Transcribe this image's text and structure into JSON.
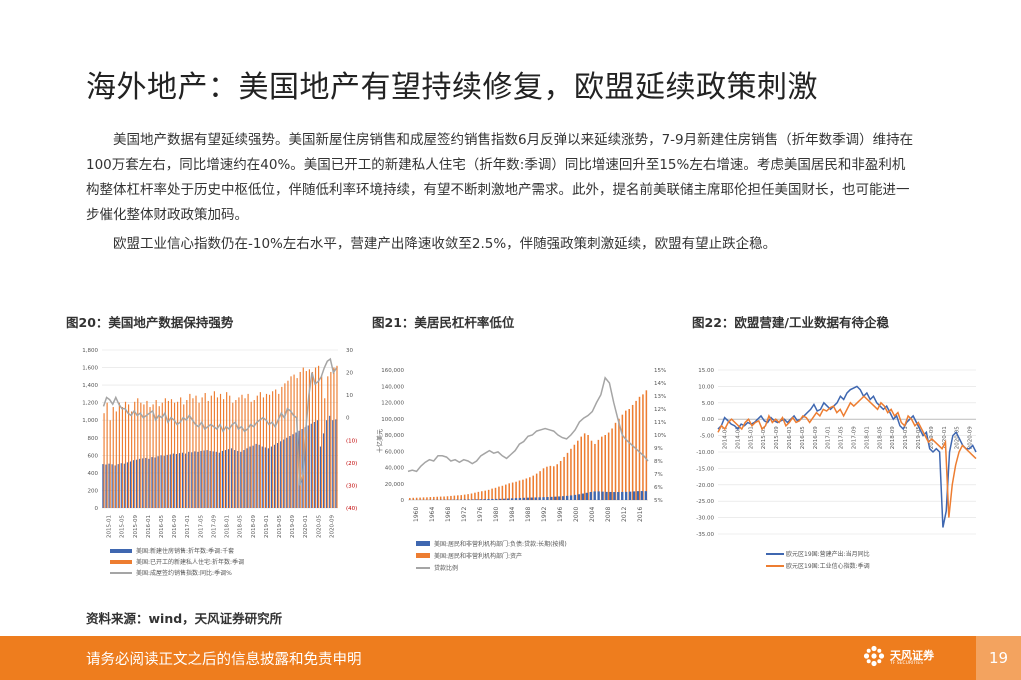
{
  "page": {
    "title": "海外地产：美国地产有望持续修复，欧盟延续政策刺激",
    "paragraphs": [
      "美国地产数据有望延续强势。美国新屋住房销售和成屋签约销售指数6月反弹以来延续涨势，7-9月新建住房销售（折年数季调）维持在100万套左右，同比增速约在40%。美国已开工的新建私人住宅（折年数:季调）同比增速回升至15%左右增速。考虑美国居民和非盈利机构整体杠杆率处于历史中枢低位，伴随低利率环境持续，有望不断刺激地产需求。此外，提名前美联储主席耶伦担任美国财长，也可能进一步催化整体财政政策加码。",
      "欧盟工业信心指数仍在-10%左右水平，营建产出降速收敛至2.5%，伴随强政策刺激延续，欧盟有望止跌企稳。"
    ],
    "source": "资料来源：wind，天风证券研究所",
    "footer_text": "请务必阅读正文之后的信息披露和免责申明",
    "logo_text": "天风证券",
    "logo_sub": "TF SECURITIES",
    "page_number": "19",
    "colors": {
      "accent_orange": "#ee7d1e",
      "series_blue": "#3f67b0",
      "series_orange": "#ed7d31",
      "series_gray": "#a5a5a5"
    }
  },
  "chart_data": [
    {
      "type": "bar",
      "title": "图20：美国地产数据保持强势",
      "x_ticks": [
        "2015-01",
        "2015-05",
        "2015-09",
        "2016-01",
        "2016-05",
        "2016-09",
        "2017-01",
        "2017-05",
        "2017-09",
        "2018-01",
        "2018-05",
        "2018-09",
        "2019-01",
        "2019-05",
        "2019-09",
        "2020-01",
        "2020-05",
        "2020-09"
      ],
      "left_axis": {
        "ylim": [
          0,
          1800
        ],
        "ticks": [
          "1,800",
          "1,600",
          "1,400",
          "1,200",
          "1,000",
          "800",
          "600",
          "400",
          "200",
          "0"
        ]
      },
      "right_axis": {
        "ylim": [
          -40,
          30
        ],
        "ticks": [
          "30",
          "20",
          "10",
          "0",
          "(10)",
          "(20)",
          "(30)",
          "(40)"
        ]
      },
      "series": [
        {
          "name": "美国:新建住房销售:折年数:季调:千套",
          "type": "bar",
          "axis": "left",
          "values": [
            500,
            495,
            505,
            498,
            485,
            500,
            510,
            505,
            520,
            530,
            545,
            550,
            560,
            565,
            570,
            560,
            580,
            575,
            590,
            600,
            595,
            605,
            610,
            620,
            615,
            625,
            630,
            620,
            640,
            635,
            645,
            640,
            650,
            655,
            660,
            650,
            645,
            640,
            630,
            650,
            660,
            670,
            680,
            660,
            650,
            640,
            660,
            680,
            700,
            710,
            730,
            720,
            700,
            690,
            680,
            700,
            720,
            740,
            760,
            780,
            800,
            820,
            840,
            860,
            880,
            900,
            920,
            940,
            960,
            980,
            1000,
            700,
            850,
            1000,
            1050,
            1000,
            1010
          ]
        },
        {
          "name": "美国:已开工的新建私人住宅:折年数:季调",
          "type": "bar",
          "axis": "left",
          "values": [
            1080,
            1200,
            1000,
            1150,
            1100,
            1200,
            1150,
            1210,
            1180,
            1100,
            1210,
            1250,
            1200,
            1180,
            1220,
            1150,
            1180,
            1230,
            1160,
            1200,
            1250,
            1220,
            1240,
            1200,
            1210,
            1260,
            1180,
            1230,
            1300,
            1250,
            1280,
            1200,
            1260,
            1310,
            1220,
            1280,
            1330,
            1260,
            1300,
            1240,
            1320,
            1280,
            1200,
            1230,
            1260,
            1290,
            1250,
            1300,
            1210,
            1230,
            1280,
            1320,
            1260,
            1300,
            1290,
            1330,
            1350,
            1300,
            1380,
            1420,
            1450,
            1500,
            1520,
            1480,
            1550,
            1600,
            1560,
            1580,
            1550,
            1600,
            1620,
            1500,
            1250,
            1500,
            1550,
            1600,
            1620
          ]
        },
        {
          "name": "美国:成屋签约销售指数:同比:季调%",
          "type": "line",
          "axis": "right",
          "values": [
            5,
            9,
            8,
            6,
            9,
            6,
            4,
            4,
            2,
            1,
            3,
            1,
            2,
            0,
            1,
            2,
            3,
            -1,
            1,
            0,
            2,
            -2,
            0,
            -1,
            -3,
            -2,
            0,
            -1,
            1,
            -1,
            -3,
            -4,
            -2,
            -5,
            -4,
            -3,
            -4,
            -5,
            -3,
            -6,
            -4,
            -5,
            -3,
            -2,
            -5,
            -4,
            -6,
            -5,
            -3,
            -4,
            -2,
            -1,
            0,
            -1,
            -3,
            -2,
            -4,
            -1,
            2,
            0,
            4,
            3,
            1,
            0,
            -30,
            -25,
            -5,
            10,
            20,
            15,
            16,
            18,
            22,
            25,
            26,
            20,
            22
          ]
        }
      ]
    },
    {
      "type": "bar",
      "title": "图21：美居民杠杆率低位",
      "x_ticks": [
        "1960",
        "1964",
        "1968",
        "1972",
        "1976",
        "1980",
        "1984",
        "1988",
        "1992",
        "1996",
        "2000",
        "2004",
        "2008",
        "2012",
        "2016"
      ],
      "ylabel": "十亿美元",
      "left_axis": {
        "ylim": [
          0,
          160000
        ],
        "ticks": [
          "160,000",
          "140,000",
          "120,000",
          "100,000",
          "80,000",
          "60,000",
          "40,000",
          "20,000",
          "0"
        ]
      },
      "right_axis": {
        "ylim": [
          5,
          15
        ],
        "ticks": [
          "15%",
          "14%",
          "13%",
          "12%",
          "11%",
          "10%",
          "9%",
          "8%",
          "7%",
          "6%",
          "5%"
        ]
      },
      "series": [
        {
          "name": "美国:居民和非营利机构部门:负债:贷款:长期(按揭)",
          "type": "bar",
          "axis": "left",
          "values": [
            140,
            160,
            180,
            200,
            225,
            250,
            280,
            310,
            340,
            370,
            400,
            440,
            480,
            530,
            590,
            650,
            730,
            820,
            930,
            1050,
            1180,
            1270,
            1340,
            1450,
            1620,
            1830,
            2060,
            2300,
            2520,
            2720,
            2900,
            3030,
            3150,
            3300,
            3470,
            3660,
            3860,
            4100,
            4390,
            4740,
            5130,
            5650,
            6320,
            7050,
            7930,
            8870,
            9820,
            10500,
            10600,
            10300,
            10000,
            9900,
            9800,
            9850,
            9900,
            10000,
            10300,
            10600,
            10900,
            11000,
            10900
          ]
        },
        {
          "name": "美国:居民和非营利机构部门:资产",
          "type": "bar",
          "axis": "left",
          "values": [
            2500,
            2700,
            2800,
            3000,
            3200,
            3300,
            3600,
            3800,
            4000,
            4200,
            4300,
            4600,
            5000,
            5400,
            5700,
            6000,
            6600,
            7200,
            8000,
            9000,
            10000,
            10800,
            11500,
            12500,
            14000,
            15000,
            16500,
            17500,
            19000,
            20500,
            21500,
            22500,
            24000,
            25000,
            26500,
            28000,
            30000,
            32500,
            35500,
            39000,
            41000,
            42000,
            41500,
            44000,
            48000,
            53000,
            58000,
            63000,
            68000,
            73000,
            78000,
            82000,
            80000,
            73000,
            69000,
            74000,
            78000,
            80000,
            83000,
            88000,
            95000,
            100000,
            105000,
            110000,
            112000,
            117000,
            122000,
            127000,
            130000,
            135000
          ]
        },
        {
          "name": "贷款比例",
          "type": "line",
          "axis": "right",
          "values": [
            7.2,
            7.3,
            7.2,
            7.6,
            7.9,
            8.1,
            8.0,
            8.4,
            8.4,
            8.3,
            8.0,
            8.1,
            7.9,
            8.1,
            8.0,
            7.8,
            8.0,
            8.4,
            8.6,
            8.8,
            8.6,
            8.7,
            8.4,
            8.2,
            8.5,
            8.8,
            9.3,
            9.5,
            9.9,
            10.0,
            10.3,
            10.4,
            10.5,
            10.4,
            10.3,
            10.0,
            9.8,
            9.7,
            10.0,
            10.4,
            11.0,
            11.3,
            11.5,
            11.8,
            12.5,
            13.1,
            14.4,
            14.0,
            12.5,
            11.2,
            10.0,
            9.6,
            9.3,
            9.0,
            8.7,
            8.4,
            8.0
          ]
        }
      ]
    },
    {
      "type": "line",
      "title": "图22：欧盟营建/工业数据有待企稳",
      "x_ticks": [
        "2014-01",
        "2014-05",
        "2015-01",
        "2015-05",
        "2015-09",
        "2016-01",
        "2016-05",
        "2016-09",
        "2017-01",
        "2017-05",
        "2017-09",
        "2018-01",
        "2018-05",
        "2018-09",
        "2019-01",
        "2019-05",
        "2019-09",
        "2020-01",
        "2020-05",
        "2020-09"
      ],
      "ylim": [
        -35,
        15
      ],
      "y_ticks": [
        "15.00",
        "10.00",
        "5.00",
        "0.00",
        "-5.00",
        "-10.00",
        "-15.00",
        "-20.00",
        "-25.00",
        "-30.00",
        "-35.00"
      ],
      "series": [
        {
          "name": "欧元区19国:营建产出:当月同比",
          "values": [
            -3,
            -2,
            0.5,
            -0.5,
            -1.5,
            -2,
            -3,
            -1.5,
            -2,
            -1,
            -1.5,
            -1,
            0,
            1,
            -0.5,
            -1,
            0.5,
            -0.5,
            -1,
            -0.5,
            0,
            -1,
            0,
            1,
            -0.5,
            0,
            1,
            2,
            3,
            4.5,
            2.5,
            3,
            5,
            4,
            3,
            4,
            5,
            7,
            6,
            8,
            9,
            9.5,
            10,
            9,
            7,
            8,
            6,
            7,
            5,
            4,
            3,
            4,
            2,
            0,
            1,
            -2,
            -3,
            -1,
            0,
            1,
            -1,
            -3,
            -5,
            -4,
            -9,
            -10,
            -9,
            -10,
            -33,
            -28,
            -10,
            -5,
            -4,
            -6,
            -8,
            -9,
            -9,
            -8,
            -10
          ]
        },
        {
          "name": "欧元区19国:工业信心指数:季调",
          "values": [
            -4,
            -2,
            -3,
            -1,
            0,
            -1,
            -2,
            -3,
            -1,
            0,
            -2,
            -1,
            -0.5,
            -3,
            -2,
            1,
            -1,
            0,
            -1,
            0.5,
            -2,
            -1,
            0.5,
            -1,
            -0.5,
            1,
            0.5,
            -1,
            0.5,
            2,
            1,
            3,
            2.5,
            3.5,
            4,
            2,
            3,
            1,
            3,
            5,
            4,
            5,
            6,
            7,
            6,
            5,
            4,
            3,
            5,
            4,
            2,
            3,
            1,
            2,
            -1,
            -2,
            1,
            0,
            -2,
            -1,
            -3,
            -5,
            -7,
            -6,
            -7,
            -8,
            -9,
            -7,
            -30,
            -20,
            -14,
            -10,
            -8,
            -9,
            -10,
            -11,
            -12
          ]
        }
      ]
    }
  ]
}
